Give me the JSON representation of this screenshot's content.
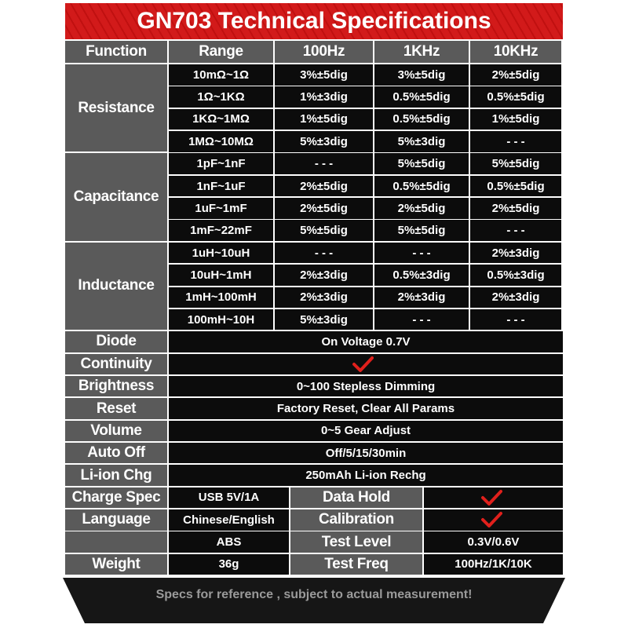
{
  "header": {
    "title": "GN703 Technical Specifications"
  },
  "table": {
    "columns": [
      "Function",
      "Range",
      "100Hz",
      "1KHz",
      "10KHz"
    ],
    "groups": [
      {
        "function": "Resistance",
        "rows": [
          [
            "10mΩ~1Ω",
            "3%±5dig",
            "3%±5dig",
            "2%±5dig"
          ],
          [
            "1Ω~1KΩ",
            "1%±3dig",
            "0.5%±5dig",
            "0.5%±5dig"
          ],
          [
            "1KΩ~1MΩ",
            "1%±5dig",
            "0.5%±5dig",
            "1%±5dig"
          ],
          [
            "1MΩ~10MΩ",
            "5%±3dig",
            "5%±3dig",
            "- - -"
          ]
        ]
      },
      {
        "function": "Capacitance",
        "rows": [
          [
            "1pF~1nF",
            "- - -",
            "5%±5dig",
            "5%±5dig"
          ],
          [
            "1nF~1uF",
            "2%±5dig",
            "0.5%±5dig",
            "0.5%±5dig"
          ],
          [
            "1uF~1mF",
            "2%±5dig",
            "2%±5dig",
            "2%±5dig"
          ],
          [
            "1mF~22mF",
            "5%±5dig",
            "5%±5dig",
            "- - -"
          ]
        ]
      },
      {
        "function": "Inductance",
        "rows": [
          [
            "1uH~10uH",
            "- - -",
            "- - -",
            "2%±3dig"
          ],
          [
            "10uH~1mH",
            "2%±3dig",
            "0.5%±3dig",
            "0.5%±3dig"
          ],
          [
            "1mH~100mH",
            "2%±3dig",
            "2%±3dig",
            "2%±3dig"
          ],
          [
            "100mH~10H",
            "5%±3dig",
            "- - -",
            "- - -"
          ]
        ]
      }
    ],
    "single_rows": [
      {
        "function": "Diode",
        "value": "On Voltage  0.7V"
      },
      {
        "function": "Continuity"
      },
      {
        "function": "Brightness",
        "value": "0~100 Stepless Dimming"
      },
      {
        "function": "Reset",
        "value": "Factory Reset, Clear All Params"
      },
      {
        "function": "Volume",
        "value": "0~5 Gear Adjust"
      },
      {
        "function": "Auto Off",
        "value": "Off/5/15/30min"
      },
      {
        "function": "Li-ion Chg",
        "value": "250mAh Li-ion Rechg"
      }
    ],
    "pair_rows": [
      {
        "function": "Charge Spec",
        "value": "USB 5V/1A",
        "label2": "Data Hold"
      },
      {
        "function": "Language",
        "value": "Chinese/English",
        "label2": "Calibration"
      },
      {
        "value": "ABS",
        "label2": "Test Level",
        "value2": "0.3V/0.6V"
      },
      {
        "function": "Weight",
        "value": "36g",
        "label2": "Test Freq",
        "value2": "100Hz/1K/10K"
      }
    ]
  },
  "footer": {
    "note": "Specs for reference , subject to actual measurement!"
  }
}
